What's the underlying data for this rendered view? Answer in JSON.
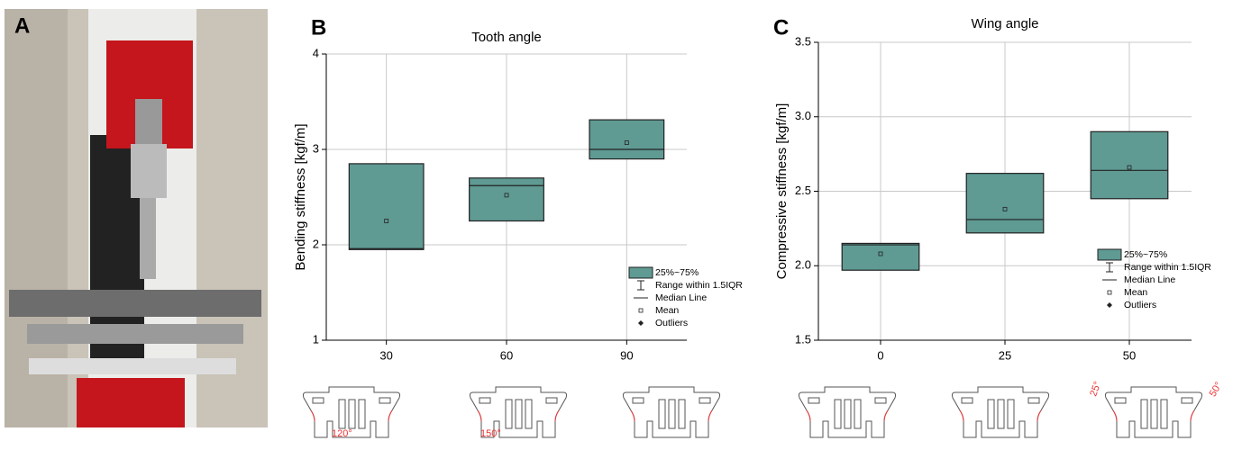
{
  "photo_panel": {
    "label": "A"
  },
  "chart_data": [
    {
      "type": "box",
      "panel_label": "B",
      "title": "Tooth angle",
      "y_label": "Bending stiffness [kgf/m]",
      "categories": [
        "30",
        "60",
        "90"
      ],
      "color": "#5f9a93",
      "q1": [
        1.95,
        2.25,
        2.9
      ],
      "median": [
        1.96,
        2.62,
        3.0
      ],
      "q3": [
        2.85,
        2.7,
        3.31
      ],
      "mean": [
        2.25,
        2.52,
        3.07
      ],
      "ylim": [
        1,
        4
      ],
      "yticks": [
        1,
        2,
        3,
        4
      ],
      "grid": true,
      "legend_position": "lower right",
      "legend_entries": [
        "25%~75%",
        "Range within 1.5IQR",
        "Median Line",
        "Mean",
        "Outliers"
      ],
      "annotations": [
        "120°",
        "150°"
      ]
    },
    {
      "type": "box",
      "panel_label": "C",
      "title": "Wing angle",
      "y_label": "Compressive stiffness [kgf/m]",
      "categories": [
        "0",
        "25",
        "50"
      ],
      "color": "#5f9a93",
      "q1": [
        1.97,
        2.22,
        2.45
      ],
      "median": [
        2.14,
        2.31,
        2.64
      ],
      "q3": [
        2.15,
        2.62,
        2.9
      ],
      "mean": [
        2.08,
        2.38,
        2.66
      ],
      "ylim": [
        1.5,
        3.5
      ],
      "yticks": [
        {
          "value": 1.5,
          "label": "1.5"
        },
        {
          "value": 2,
          "label": "2.0"
        },
        {
          "value": 2.5,
          "label": "2.5"
        },
        {
          "value": 3,
          "label": "3.0"
        },
        {
          "value": 3.5,
          "label": "3.5"
        }
      ],
      "grid": true,
      "legend_position": "lower right",
      "legend_entries": [
        "25%~75%",
        "Range within 1.5IQR",
        "Median Line",
        "Mean",
        "Outliers"
      ],
      "annotations": [
        "25°",
        "50°"
      ]
    }
  ]
}
